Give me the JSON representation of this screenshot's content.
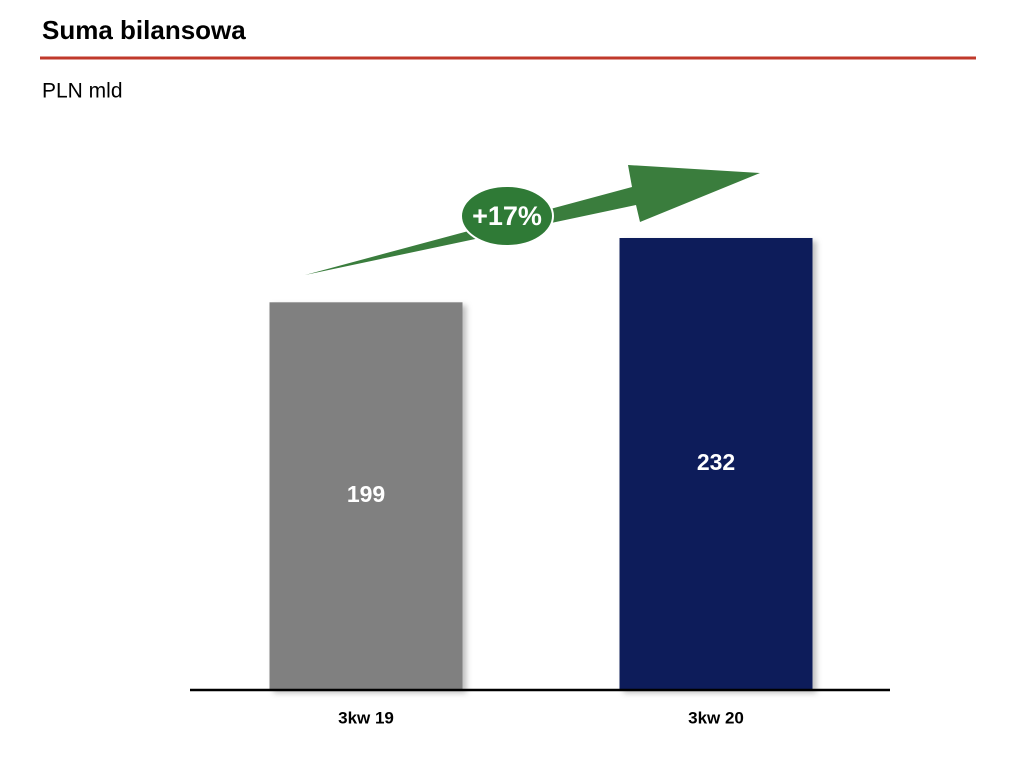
{
  "chart_data": {
    "type": "bar",
    "title": "Suma bilansowa",
    "subtitle": "PLN mld",
    "categories": [
      "3kw 19",
      "3kw 20"
    ],
    "values": [
      199,
      232
    ],
    "colors": [
      "#808080",
      "#0b1f5a"
    ],
    "annotation": "+17%"
  }
}
